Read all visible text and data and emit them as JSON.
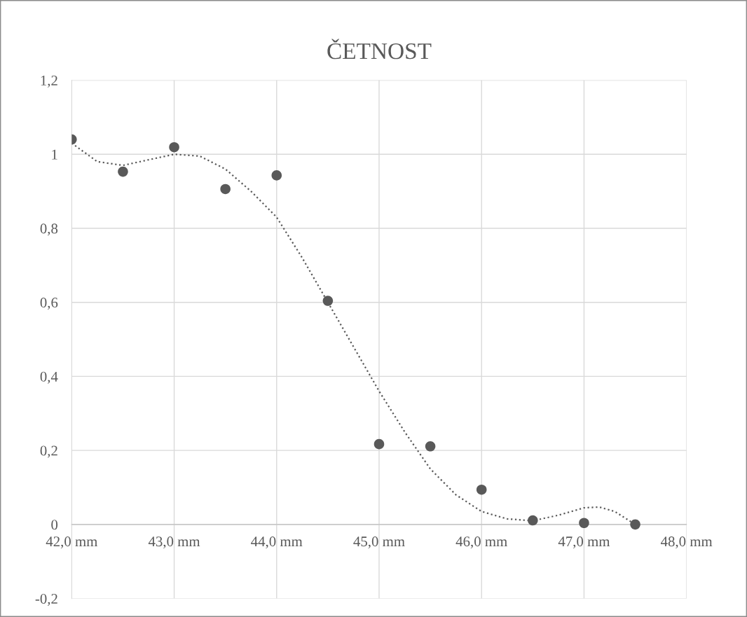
{
  "chart_data": {
    "type": "scatter",
    "title": "ČETNOST",
    "x": [
      42.0,
      42.5,
      43.0,
      43.5,
      44.0,
      44.5,
      45.0,
      45.5,
      46.0,
      46.5,
      47.0,
      47.5
    ],
    "series": [
      {
        "color": "#595959",
        "marker": "circle",
        "values": [
          1.04,
          0.953,
          1.019,
          0.906,
          0.943,
          0.604,
          0.217,
          0.211,
          0.094,
          0.011,
          0.004,
          0.0
        ]
      },
      {
        "type": "line",
        "color": "#595959",
        "line_style": "dotted",
        "marker": "none",
        "x": [
          42.0,
          42.25,
          42.5,
          42.75,
          43.0,
          43.25,
          43.5,
          43.75,
          44.0,
          44.25,
          44.5,
          44.75,
          45.0,
          45.25,
          45.5,
          45.75,
          46.0,
          46.25,
          46.5,
          46.75,
          47.0,
          47.15,
          47.3,
          47.5
        ],
        "values": [
          1.03,
          0.98,
          0.97,
          0.985,
          1.0,
          0.995,
          0.96,
          0.9,
          0.83,
          0.72,
          0.6,
          0.48,
          0.36,
          0.25,
          0.15,
          0.08,
          0.035,
          0.015,
          0.01,
          0.025,
          0.045,
          0.047,
          0.035,
          0.0
        ]
      }
    ],
    "xlim": [
      42.0,
      48.0
    ],
    "xticks": [
      {
        "value": 42.0,
        "label": "42,0 mm"
      },
      {
        "value": 43.0,
        "label": "43,0 mm"
      },
      {
        "value": 44.0,
        "label": "44,0 mm"
      },
      {
        "value": 45.0,
        "label": "45,0 mm"
      },
      {
        "value": 46.0,
        "label": "46,0 mm"
      },
      {
        "value": 47.0,
        "label": "47,0 mm"
      },
      {
        "value": 48.0,
        "label": "48,0 mm"
      }
    ],
    "ylim": [
      -0.2,
      1.2
    ],
    "yticks": [
      {
        "value": -0.2,
        "label": "-0,2"
      },
      0,
      {
        "value": 0.2,
        "label": "0,2"
      },
      {
        "value": 0.4,
        "label": "0,4"
      },
      {
        "value": 0.6,
        "label": "0,6"
      },
      {
        "value": 0.8,
        "label": "0,8"
      },
      1,
      {
        "value": 1.2,
        "label": "1,2"
      }
    ],
    "grid": true
  }
}
